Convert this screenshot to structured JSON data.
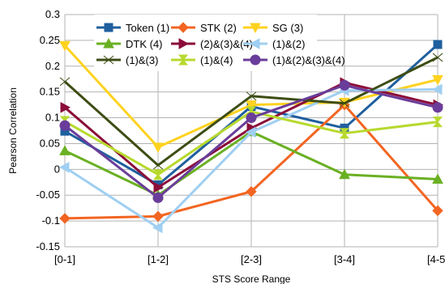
{
  "chart_data": {
    "type": "line",
    "xlabel": "STS Score Range",
    "ylabel": "Pearson Correlation",
    "categories": [
      "[0-1]",
      "[1-2]",
      "[2-3]",
      "[3-4]",
      "[4-5]"
    ],
    "ylim": [
      -0.15,
      0.3
    ],
    "yticks": [
      -0.15,
      -0.1,
      -0.05,
      0,
      0.05,
      0.1,
      0.15,
      0.2,
      0.25,
      0.3
    ],
    "ytick_labels": [
      "-0.15",
      "-0.1",
      "-0.05",
      "0",
      "0.05",
      "0.1",
      "0.15",
      "0.2",
      "0.25",
      "0.3"
    ],
    "grid": true,
    "legend_position": "top",
    "series": [
      {
        "name": "Token (1)",
        "color": "#1f5f9e",
        "marker": "square",
        "values": [
          0.074,
          -0.03,
          0.122,
          0.08,
          0.242
        ]
      },
      {
        "name": "STK (2)",
        "color": "#f26522",
        "marker": "diamond",
        "values": [
          -0.095,
          -0.091,
          -0.043,
          0.125,
          -0.08
        ]
      },
      {
        "name": "SG (3)",
        "color": "#ffd21f",
        "marker": "triangle-down",
        "values": [
          0.24,
          0.043,
          0.125,
          0.13,
          0.174
        ]
      },
      {
        "name": "DTK (4)",
        "color": "#6ab023",
        "marker": "triangle-up",
        "values": [
          0.036,
          -0.05,
          0.073,
          -0.01,
          -0.019
        ]
      },
      {
        "name": "(2)&(3)&(4)",
        "color": "#8b0d3a",
        "marker": "triangle-right",
        "values": [
          0.12,
          -0.035,
          0.08,
          0.168,
          0.125
        ]
      },
      {
        "name": "(1)&(2)",
        "color": "#9fcff2",
        "marker": "triangle-left",
        "values": [
          0.004,
          -0.113,
          0.072,
          0.153,
          0.155
        ]
      },
      {
        "name": "(1)&(3)",
        "color": "#3d4d14",
        "marker": "bowtie",
        "values": [
          0.17,
          0.008,
          0.142,
          0.128,
          0.217
        ]
      },
      {
        "name": "(1)&(4)",
        "color": "#b7d92e",
        "marker": "hourglass",
        "values": [
          0.093,
          -0.01,
          0.112,
          0.07,
          0.092
        ]
      },
      {
        "name": "(1)&(2)&(3)&(4)",
        "color": "#6a3d9a",
        "marker": "circle",
        "values": [
          0.085,
          -0.055,
          0.1,
          0.163,
          0.12
        ]
      }
    ]
  }
}
